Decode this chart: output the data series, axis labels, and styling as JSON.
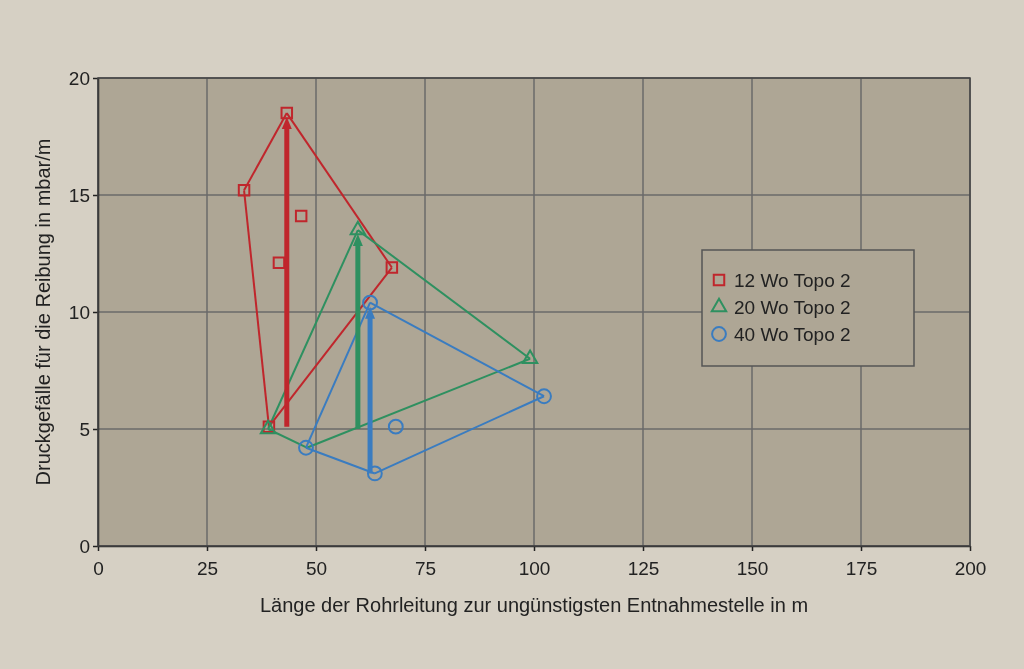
{
  "chart_data": {
    "type": "scatter",
    "xlabel": "Länge der Rohrleitung zur ungünstigsten Entnahmestelle in m",
    "ylabel": "Druckgefälle für die Reibung in mbar/m",
    "xlim": [
      0,
      200
    ],
    "xticks": [
      0,
      25,
      50,
      75,
      100,
      125,
      150,
      175,
      200
    ],
    "ylim": [
      0,
      20
    ],
    "yticks": [
      0,
      5,
      10,
      15,
      20
    ],
    "grid": true,
    "legend": "right",
    "series": [
      {
        "type": "line",
        "marker": "none",
        "color": "#c0262c",
        "x": [
          33.5,
          39.2
        ],
        "values": [
          15.2,
          5.1
        ]
      },
      {
        "type": "line",
        "marker": "none",
        "color": "#c0262c",
        "x": [
          33.5,
          43.3
        ],
        "values": [
          15.2,
          18.5
        ]
      },
      {
        "type": "line",
        "marker": "none",
        "color": "#c0262c",
        "x": [
          43.3,
          67.4
        ],
        "values": [
          18.5,
          11.9
        ]
      },
      {
        "type": "line",
        "marker": "none",
        "color": "#c0262c",
        "x": [
          39.2,
          67.4
        ],
        "values": [
          5.1,
          11.9
        ]
      },
      {
        "type": "line",
        "marker": "none",
        "color": "#2e9060",
        "x": [
          39,
          59.6
        ],
        "values": [
          5.0,
          13.5
        ]
      },
      {
        "type": "line",
        "marker": "none",
        "color": "#2e9060",
        "x": [
          59.6,
          99.1
        ],
        "values": [
          13.5,
          8.0
        ]
      },
      {
        "type": "line",
        "marker": "none",
        "color": "#2e9060",
        "x": [
          47.9,
          99.1
        ],
        "values": [
          4.2,
          8.0
        ]
      },
      {
        "type": "line",
        "marker": "none",
        "color": "#2e9060",
        "x": [
          39,
          47.9
        ],
        "values": [
          5.0,
          4.2
        ]
      },
      {
        "type": "line",
        "marker": "none",
        "color": "#3a7cc0",
        "x": [
          47.7,
          62.4
        ],
        "values": [
          4.2,
          10.4
        ]
      },
      {
        "type": "line",
        "marker": "none",
        "color": "#3a7cc0",
        "x": [
          62.4,
          102.3
        ],
        "values": [
          10.4,
          6.4
        ]
      },
      {
        "type": "line",
        "marker": "none",
        "color": "#3a7cc0",
        "x": [
          63.5,
          102.3
        ],
        "values": [
          3.1,
          6.4
        ]
      },
      {
        "type": "line",
        "marker": "none",
        "color": "#3a7cc0",
        "x": [
          47.7,
          63.5
        ],
        "values": [
          4.2,
          3.1
        ]
      },
      {
        "marker": "square",
        "name": "12 Wo Topo 2",
        "color": "#c0262c",
        "x": [
          43.3,
          33.5,
          46.6,
          41.5,
          67.4,
          39.2
        ],
        "values": [
          18.5,
          15.2,
          14.1,
          12.1,
          11.9,
          5.1
        ]
      },
      {
        "marker": "triangle",
        "name": "20 Wo Topo 2",
        "color": "#2e9060",
        "x": [
          59.6,
          99.1,
          39
        ],
        "values": [
          13.5,
          8.0,
          5.0
        ]
      },
      {
        "marker": "circle",
        "name": "40 Wo Topo 2",
        "color": "#3a7cc0",
        "x": [
          62.4,
          102.3,
          63.5,
          47.7,
          68.3
        ],
        "values": [
          10.4,
          6.4,
          3.1,
          4.2,
          5.1
        ]
      }
    ]
  }
}
